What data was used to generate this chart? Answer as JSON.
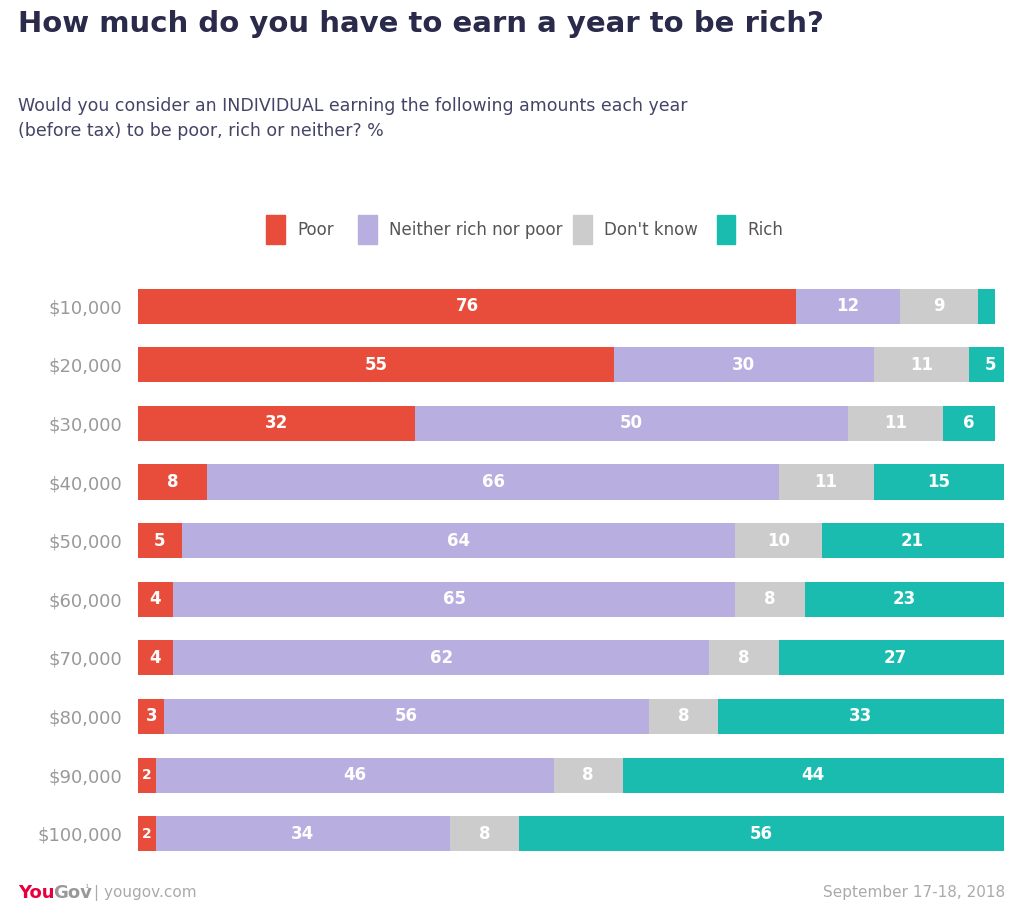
{
  "title": "How much do you have to earn a year to be rich?",
  "subtitle": "Would you consider an INDIVIDUAL earning the following amounts each year\n(before tax) to be poor, rich or neither? %",
  "categories": [
    "$10,000",
    "$20,000",
    "$30,000",
    "$40,000",
    "$50,000",
    "$60,000",
    "$70,000",
    "$80,000",
    "$90,000",
    "$100,000"
  ],
  "poor": [
    76,
    55,
    32,
    8,
    5,
    4,
    4,
    3,
    2,
    2
  ],
  "neither": [
    12,
    30,
    50,
    66,
    64,
    65,
    62,
    56,
    46,
    34
  ],
  "dontknow": [
    9,
    11,
    11,
    11,
    10,
    8,
    8,
    8,
    8,
    8
  ],
  "rich": [
    2,
    5,
    6,
    15,
    21,
    23,
    27,
    33,
    44,
    56
  ],
  "colors": {
    "poor": "#e84c3a",
    "neither": "#b8aee0",
    "dontknow": "#cccccc",
    "rich": "#1abcb0"
  },
  "legend_labels": [
    "Poor",
    "Neither rich nor poor",
    "Don't know",
    "Rich"
  ],
  "header_bg": "#e8e8f0",
  "title_color": "#2a2a4a",
  "subtitle_color": "#444466",
  "ytick_color": "#999999",
  "footer_text_right": "September 17-18, 2018",
  "yougov_you_color": "#e8003d",
  "yougov_gov_color": "#999999",
  "footer_color": "#aaaaaa"
}
